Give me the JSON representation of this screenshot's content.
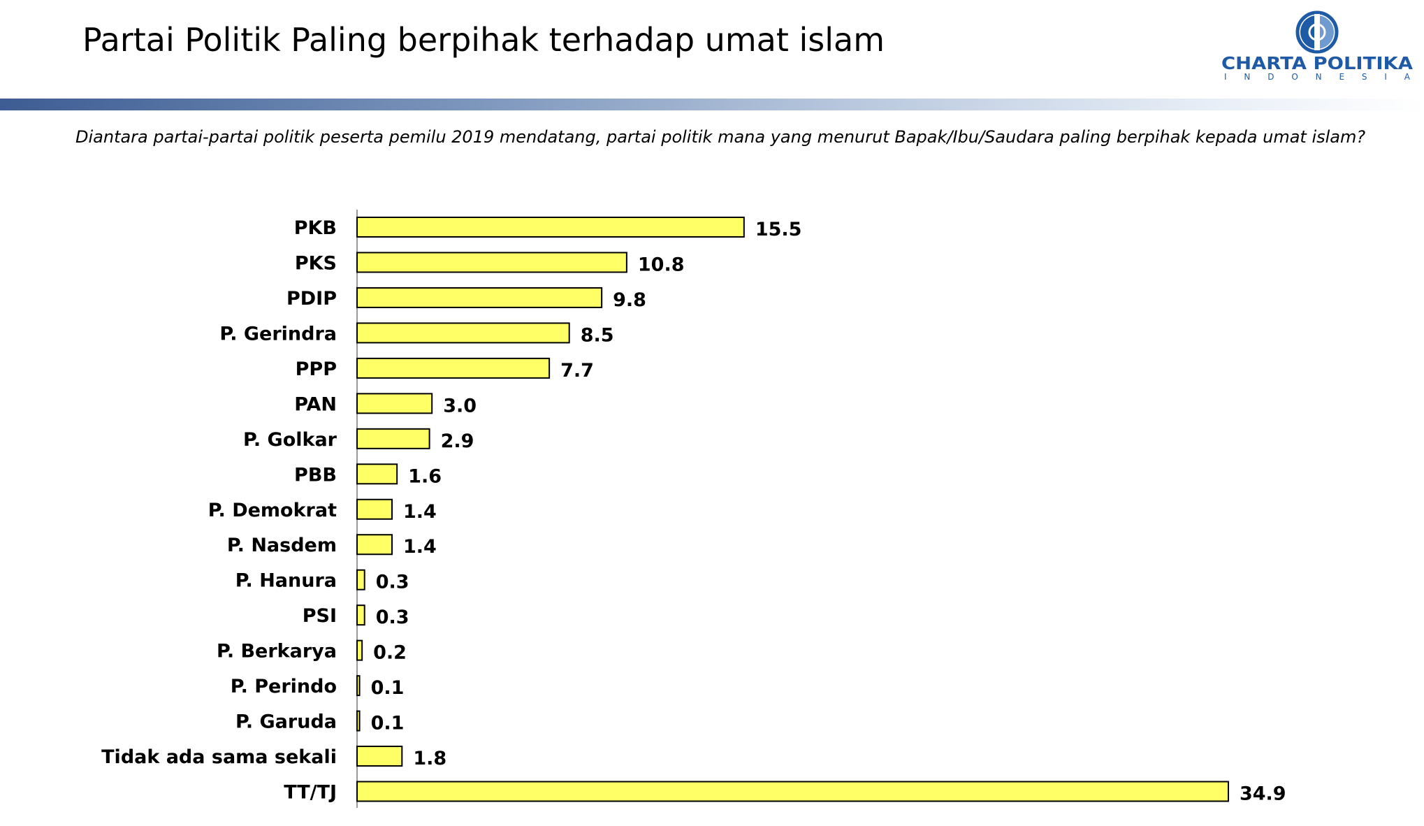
{
  "header": {
    "title": "Partai Politik Paling berpihak terhadap umat islam"
  },
  "logo": {
    "name": "CHARTA POLITIKA",
    "tagline": "INDONESIA",
    "icon": "globe-icon"
  },
  "question": "Diantara partai-partai politik peserta pemilu 2019 mendatang, partai politik mana yang menurut Bapak/Ibu/Saudara paling berpihak kepada umat islam?",
  "colors": {
    "bar_fill": "#FFFF66",
    "bar_stroke": "#000000",
    "axis_line": "#999999",
    "logo_blue": "#1F5AA6",
    "header_rule": "#3D5C93"
  },
  "chart_data": {
    "type": "bar",
    "orientation": "horizontal",
    "categories": [
      "PKB",
      "PKS",
      "PDIP",
      "P. Gerindra",
      "PPP",
      "PAN",
      "P. Golkar",
      "PBB",
      "P. Demokrat",
      "P. Nasdem",
      "P. Hanura",
      "PSI",
      "P. Berkarya",
      "P. Perindo",
      "P. Garuda",
      "Tidak ada sama sekali",
      "TT/TJ"
    ],
    "values": [
      15.5,
      10.8,
      9.8,
      8.5,
      7.7,
      3.0,
      2.9,
      1.6,
      1.4,
      1.4,
      0.3,
      0.3,
      0.2,
      0.1,
      0.1,
      1.8,
      34.9
    ],
    "data_labels": [
      "15.5",
      "10.8",
      "9.8",
      "8.5",
      "7.7",
      "3.0",
      "2.9",
      "1.6",
      "1.4",
      "1.4",
      "0.3",
      "0.3",
      "0.2",
      "0.1",
      "0.1",
      "1.8",
      "34.9"
    ],
    "title": "",
    "xlabel": "",
    "ylabel": "",
    "grid": false,
    "legend": "none"
  }
}
